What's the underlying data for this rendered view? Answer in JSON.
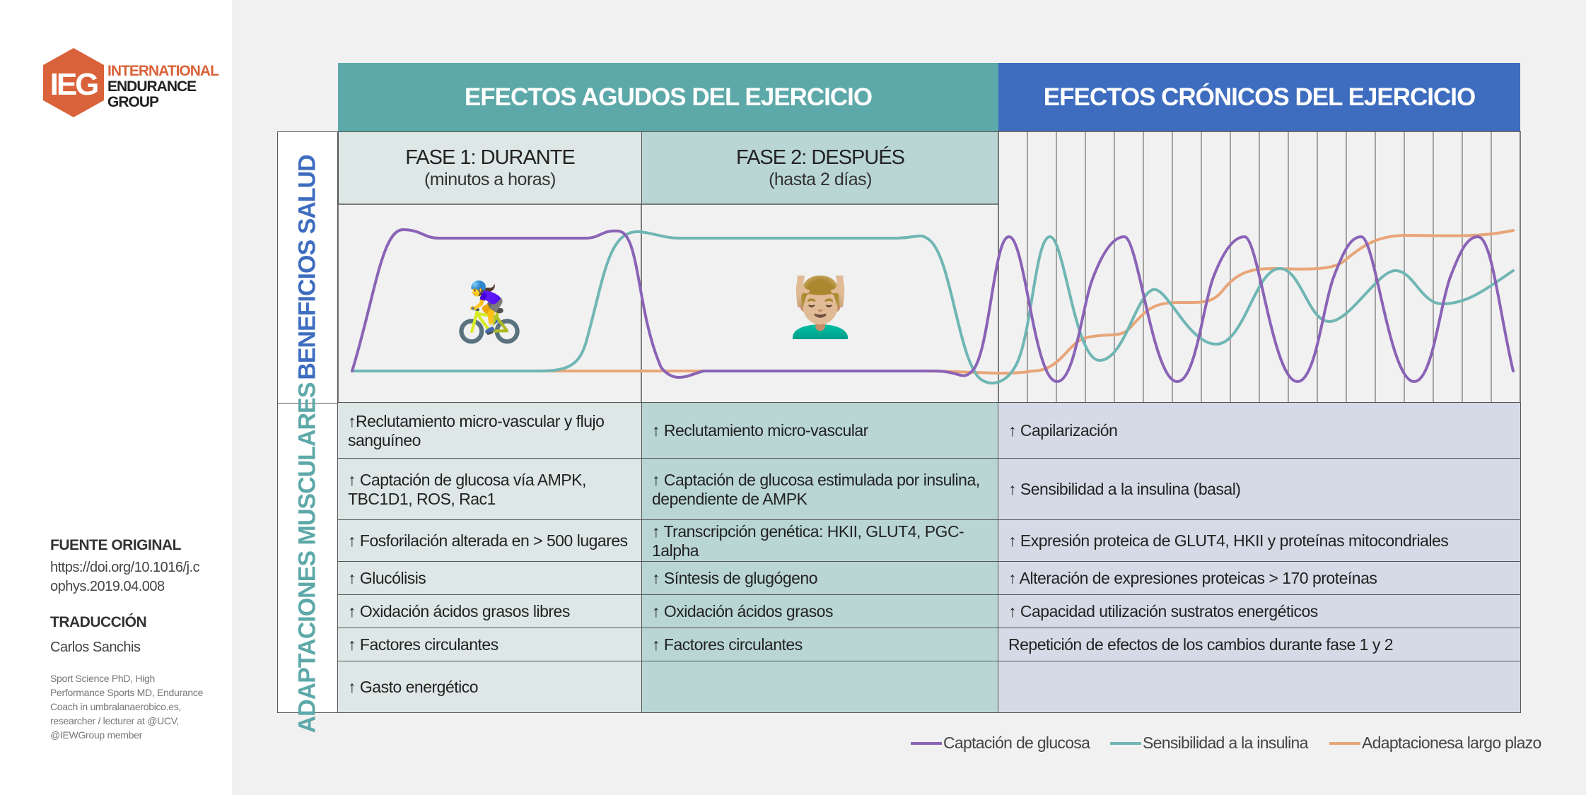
{
  "logo": {
    "mark": "IEG",
    "line1": "INTERNATIONAL",
    "line2": "ENDURANCE",
    "line3": "GROUP",
    "color": "#d9623a"
  },
  "source": {
    "title": "FUENTE ORIGINAL",
    "value": "https://doi.org/10.1016/j.cophys.2019.04.008"
  },
  "translation": {
    "title": "TRADUCCIÓN",
    "name": "Carlos Sanchis",
    "bio": "Sport Science PhD, High Performance Sports MD, Endurance Coach in umbralanaerobico.es, researcher / lecturer at @UCV, @IEWGroup member"
  },
  "headers": {
    "acute": "EFECTOS AGUDOS DEL EJERCICIO",
    "chronic": "EFECTOS CRÓNICOS DEL EJERCICIO"
  },
  "phases": [
    {
      "title": "FASE 1: DURANTE",
      "subtitle": "(minutos a horas)",
      "emoji": "🚴‍♀️"
    },
    {
      "title": "FASE 2: DESPUÉS",
      "subtitle": "(hasta 2 días)",
      "emoji": "💆🏼‍♂️"
    }
  ],
  "row_labels": {
    "health": "BENEFICIOS SALUD",
    "muscle": "ADAPTACIONES MUSCULARES"
  },
  "table": [
    [
      "↑Reclutamiento micro-vascular y flujo sanguíneo",
      "↑ Reclutamiento micro-vascular",
      "↑ Capilarización"
    ],
    [
      "↑ Captación de glucosa vía AMPK, TBC1D1, ROS, Rac1",
      "↑ Captación de glucosa estimulada por insulina, dependiente de AMPK",
      "↑  Sensibilidad a la insulina (basal)"
    ],
    [
      "↑ Fosforilación alterada en > 500 lugares",
      "↑  Transcripción genética: HKII, GLUT4, PGC-1alpha",
      "↑  Expresión proteica de GLUT4, HKII y proteínas mitocondriales"
    ],
    [
      "↑ Glucólisis",
      "↑  Síntesis de glugógeno",
      "↑  Alteración de expresiones proteicas > 170 proteínas"
    ],
    [
      "↑ Oxidación ácidos grasos libres",
      "↑  Oxidación ácidos grasos",
      "↑  Capacidad utilización sustratos energéticos"
    ],
    [
      "↑ Factores circulantes",
      "↑  Factores circulantes",
      "Repetición de efectos de los cambios durante fase 1 y 2"
    ],
    [
      "↑ Gasto energético",
      "",
      ""
    ]
  ],
  "legend": [
    {
      "label": "Captación de glucosa",
      "color": "#8a63b6"
    },
    {
      "label": "Sensibilidad a la insulina",
      "color": "#6fb6b4"
    },
    {
      "label": "Adaptacionesa largo plazo",
      "color": "#e8a579"
    }
  ]
}
